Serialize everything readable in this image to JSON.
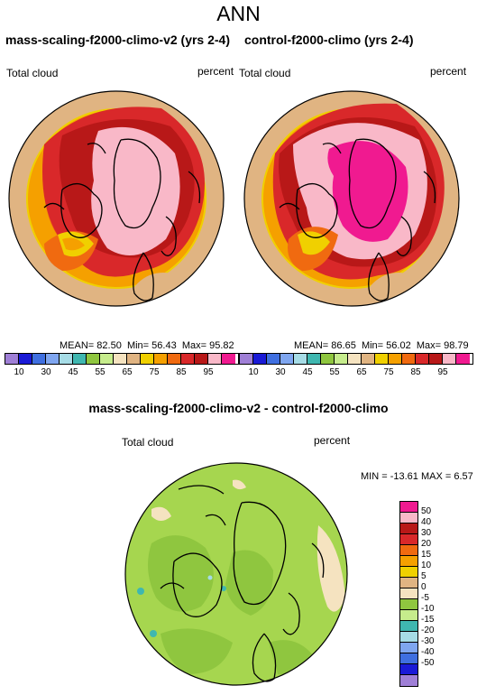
{
  "title": "ANN",
  "left_panel": {
    "title": "mass-scaling-f2000-climo-v2 (yrs 2-4)",
    "variable": "Total cloud",
    "units": "percent",
    "mean_label": "MEAN=",
    "mean": "82.50",
    "min_label": "Min=",
    "min": "56.43",
    "max_label": "Max=",
    "max": "95.82"
  },
  "right_panel": {
    "title": "control-f2000-climo (yrs 2-4)",
    "variable": "Total cloud",
    "units": "percent",
    "mean_label": "MEAN=",
    "mean": "86.65",
    "min_label": "Min=",
    "min": "56.02",
    "max_label": "Max=",
    "max": "98.79"
  },
  "top_colorbar": {
    "colors": [
      "#9f7fd6",
      "#1a1ad6",
      "#3f6fe0",
      "#7fa6f0",
      "#a6dce6",
      "#3fb7b0",
      "#8fc63f",
      "#c6ec8c",
      "#f5e3c0",
      "#e0b482",
      "#f0d000",
      "#f5a000",
      "#f06a10",
      "#d9282a",
      "#b81818",
      "#f9b8c8",
      "#f01a90"
    ],
    "tick_labels": [
      "10",
      "30",
      "45",
      "55",
      "65",
      "75",
      "85",
      "95"
    ]
  },
  "diff_panel": {
    "title": "mass-scaling-f2000-climo-v2 - control-f2000-climo",
    "variable": "Total cloud",
    "units": "percent",
    "min_label": "MIN =",
    "min": "-13.61",
    "max_label": "MAX =",
    "max": "6.57"
  },
  "diff_colorbar": {
    "colors": [
      "#f01a90",
      "#f9b8c8",
      "#b81818",
      "#d9282a",
      "#f06a10",
      "#f5a000",
      "#f0d000",
      "#e0b482",
      "#f5e3c0",
      "#8fc63f",
      "#c6ec8c",
      "#3fb7b0",
      "#a6dce6",
      "#7fa6f0",
      "#3f6fe0",
      "#1a1ad6",
      "#9f7fd6"
    ],
    "tick_labels": [
      "50",
      "40",
      "30",
      "20",
      "15",
      "10",
      "5",
      "0",
      "-5",
      "-10",
      "-15",
      "-20",
      "-30",
      "-40",
      "-50"
    ]
  },
  "colors": {
    "land_outline": "#000000",
    "diff_main": "#a6d64f",
    "diff_dark": "#8fc63f"
  }
}
